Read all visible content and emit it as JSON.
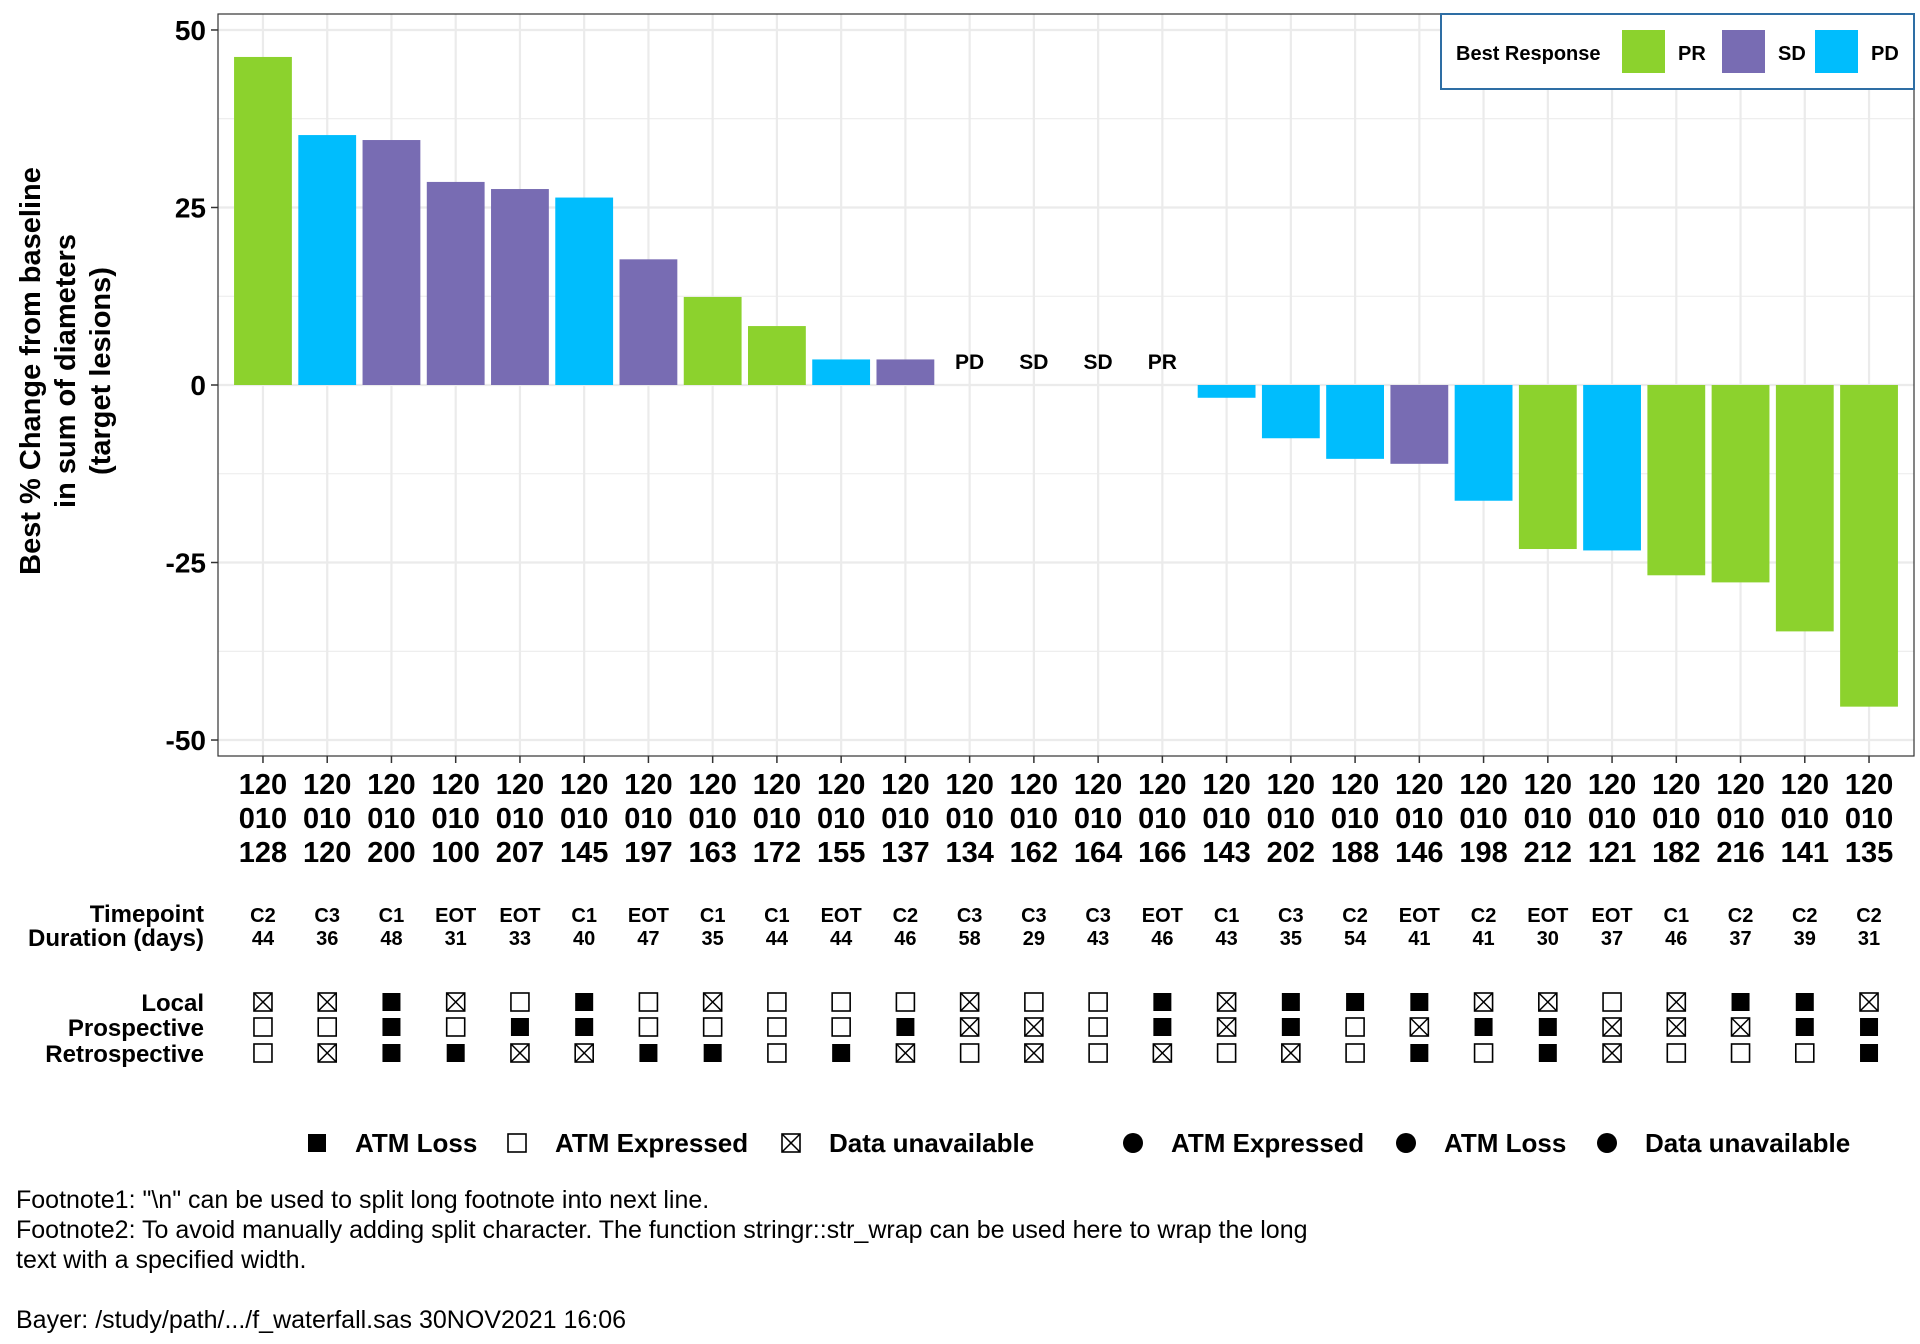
{
  "chart_data": {
    "type": "bar",
    "ylabel": [
      "Best % Change from baseline",
      "in sum of diameters",
      "(target lesions)"
    ],
    "ylim": [
      -50,
      50
    ],
    "yticks": [
      50,
      25,
      0,
      -25,
      -50
    ],
    "grid": true,
    "legend": {
      "title": "Best Response",
      "placement": "top-right",
      "entries": [
        {
          "label": "PR",
          "color": "#8cd22d"
        },
        {
          "label": "SD",
          "color": "#786cb3"
        },
        {
          "label": "PD",
          "color": "#00bdfd"
        }
      ]
    },
    "categories": [
      [
        "120",
        "010",
        "128"
      ],
      [
        "120",
        "010",
        "120"
      ],
      [
        "120",
        "010",
        "200"
      ],
      [
        "120",
        "010",
        "100"
      ],
      [
        "120",
        "010",
        "207"
      ],
      [
        "120",
        "010",
        "145"
      ],
      [
        "120",
        "010",
        "197"
      ],
      [
        "120",
        "010",
        "163"
      ],
      [
        "120",
        "010",
        "172"
      ],
      [
        "120",
        "010",
        "155"
      ],
      [
        "120",
        "010",
        "137"
      ],
      [
        "120",
        "010",
        "134"
      ],
      [
        "120",
        "010",
        "162"
      ],
      [
        "120",
        "010",
        "164"
      ],
      [
        "120",
        "010",
        "166"
      ],
      [
        "120",
        "010",
        "143"
      ],
      [
        "120",
        "010",
        "202"
      ],
      [
        "120",
        "010",
        "188"
      ],
      [
        "120",
        "010",
        "146"
      ],
      [
        "120",
        "010",
        "198"
      ],
      [
        "120",
        "010",
        "212"
      ],
      [
        "120",
        "010",
        "121"
      ],
      [
        "120",
        "010",
        "182"
      ],
      [
        "120",
        "010",
        "216"
      ],
      [
        "120",
        "010",
        "141"
      ],
      [
        "120",
        "010",
        "135"
      ]
    ],
    "values": [
      46.2,
      35.2,
      34.5,
      28.6,
      27.6,
      26.4,
      17.7,
      12.4,
      8.3,
      3.6,
      3.6,
      0,
      0,
      0,
      0,
      -1.8,
      -7.5,
      -10.4,
      -11.1,
      -16.3,
      -23.1,
      -23.3,
      -26.8,
      -27.8,
      -34.7,
      -45.3
    ],
    "response": [
      "PR",
      "PD",
      "SD",
      "SD",
      "SD",
      "PD",
      "SD",
      "PR",
      "PR",
      "PD",
      "SD",
      "PD",
      "SD",
      "SD",
      "PR",
      "PD",
      "PD",
      "PD",
      "SD",
      "PD",
      "PR",
      "PD",
      "PR",
      "PR",
      "PR",
      "PR"
    ],
    "zero_labels": [
      "",
      "",
      "",
      "",
      "",
      "",
      "",
      "",
      "",
      "",
      "",
      "PD",
      "SD",
      "SD",
      "PR",
      "",
      "",
      "",
      "",
      "",
      "",
      "",
      "",
      "",
      "",
      ""
    ],
    "timepoint_label": "Timepoint",
    "duration_label": "Duration (days)",
    "timepoint": [
      "C2",
      "C3",
      "C1",
      "EOT",
      "EOT",
      "C1",
      "EOT",
      "C1",
      "C1",
      "EOT",
      "C2",
      "C3",
      "C3",
      "C3",
      "EOT",
      "C1",
      "C3",
      "C2",
      "EOT",
      "C2",
      "EOT",
      "EOT",
      "C1",
      "C2",
      "C2",
      "C2"
    ],
    "duration": [
      "44",
      "36",
      "48",
      "31",
      "33",
      "40",
      "47",
      "35",
      "44",
      "44",
      "46",
      "58",
      "29",
      "43",
      "46",
      "43",
      "35",
      "54",
      "41",
      "41",
      "30",
      "37",
      "46",
      "37",
      "39",
      "31"
    ],
    "status_rows": [
      {
        "label": "Local",
        "values": [
          "U",
          "U",
          "L",
          "U",
          "E",
          "L",
          "E",
          "U",
          "E",
          "E",
          "E",
          "U",
          "E",
          "E",
          "L",
          "U",
          "L",
          "L",
          "L",
          "U",
          "U",
          "E",
          "U",
          "L",
          "L",
          "U"
        ]
      },
      {
        "label": "Prospective",
        "values": [
          "E",
          "E",
          "L",
          "E",
          "L",
          "L",
          "E",
          "E",
          "E",
          "E",
          "L",
          "U",
          "U",
          "E",
          "L",
          "U",
          "L",
          "E",
          "U",
          "L",
          "L",
          "U",
          "U",
          "U",
          "L",
          "L"
        ]
      },
      {
        "label": "Retrospective",
        "values": [
          "E",
          "U",
          "L",
          "L",
          "U",
          "U",
          "L",
          "L",
          "E",
          "L",
          "U",
          "E",
          "U",
          "E",
          "U",
          "E",
          "U",
          "E",
          "L",
          "E",
          "L",
          "U",
          "E",
          "E",
          "E",
          "L"
        ]
      }
    ],
    "status_legend": [
      {
        "key": "L",
        "label": "ATM Loss"
      },
      {
        "key": "E",
        "label": "ATM Expressed"
      },
      {
        "key": "U",
        "label": "Data unavailable"
      }
    ],
    "dot_legend": [
      "ATM Expressed",
      "ATM Loss",
      "Data unavailable"
    ]
  },
  "footnotes": [
    "Footnote1: \"\\n\" can be used to split long footnote into next line.",
    "Footnote2: To avoid manually adding split character. The function stringr::str_wrap can be used here to wrap the long",
    "text with a specified width.",
    "",
    "Bayer: /study/path/.../f_waterfall.sas 30NOV2021 16:06"
  ]
}
